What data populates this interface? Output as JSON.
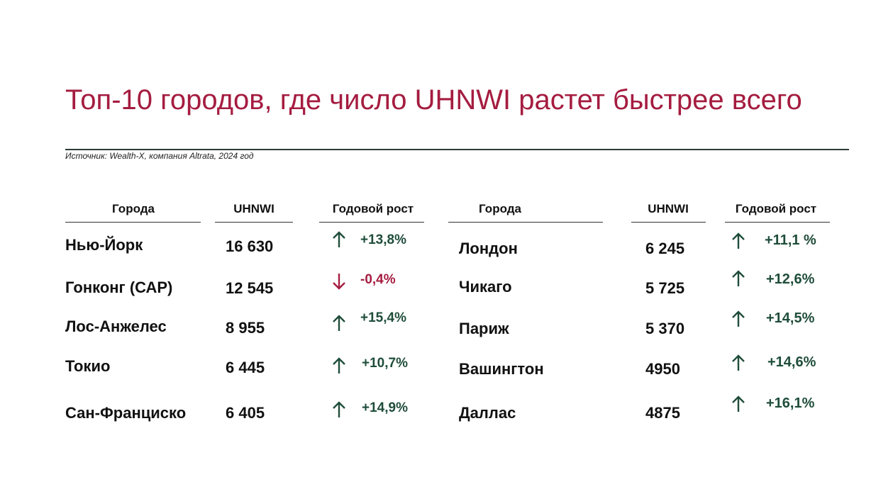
{
  "header": {
    "title": "Топ-10 городов, где число UHNWI растет быстрее всего",
    "source": "Источник: Wealth-X, компания Altrata, 2024 год"
  },
  "tables": [
    {
      "columns": [
        "Города",
        "UHNWI",
        "Годовой рост"
      ],
      "rows": [
        [
          "Нью-Йорк",
          "16 630",
          "+13,8%"
        ],
        [
          "Гонконг (САР)",
          "12 545",
          "-0,4%"
        ],
        [
          "Лос-Анжелес",
          "8 955",
          "+15,4%"
        ],
        [
          "Токио",
          "6 445",
          "+10,7%"
        ],
        [
          "Сан-Франциско",
          "6 405",
          "+14,9%"
        ]
      ]
    },
    {
      "columns": [
        "Города",
        "UHNWI",
        "Годовой рост"
      ],
      "rows": [
        [
          "Лондон",
          "6 245",
          "+11,1 %"
        ],
        [
          "Чикаго",
          "5 725",
          "+12,6%"
        ],
        [
          "Париж",
          "5 370",
          "+14,5%"
        ],
        [
          "Вашингтон",
          "4950",
          "+14,6%"
        ],
        [
          "Даллас",
          "4875",
          "+16,1%"
        ]
      ]
    }
  ]
}
